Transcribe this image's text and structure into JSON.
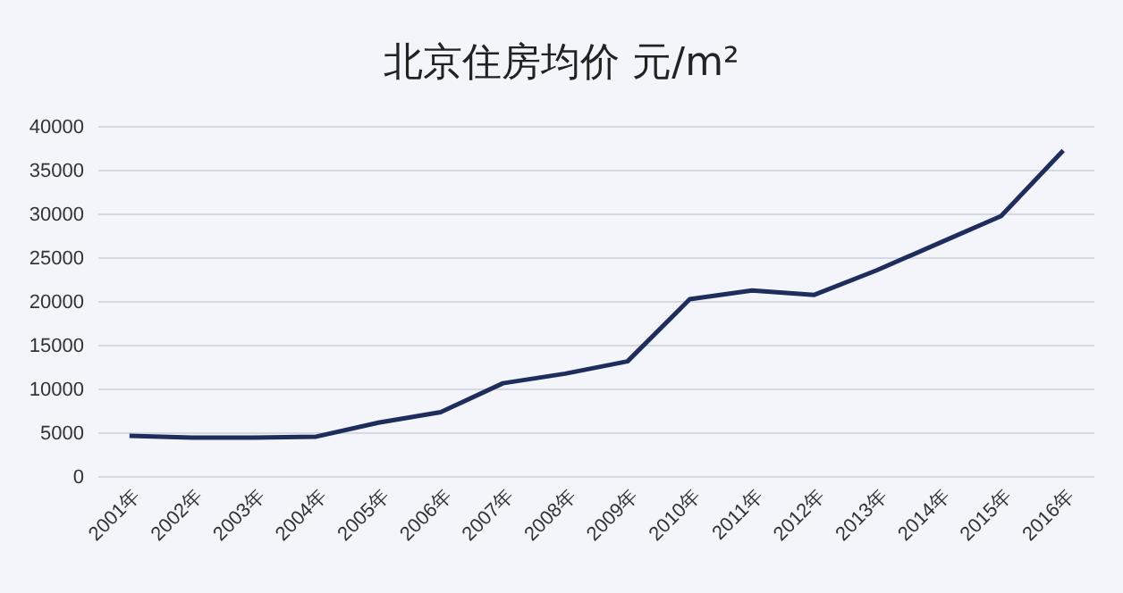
{
  "chart_data": {
    "type": "line",
    "title": "北京住房均价 元/m²",
    "categories": [
      "2001年",
      "2002年",
      "2003年",
      "2004年",
      "2005年",
      "2006年",
      "2007年",
      "2008年",
      "2009年",
      "2010年",
      "2011年",
      "2012年",
      "2013年",
      "2014年",
      "2015年",
      "2016年"
    ],
    "series": [
      {
        "color": "#1f2d5c",
        "values": [
          4700,
          4500,
          4500,
          4600,
          6200,
          7400,
          10700,
          11800,
          13200,
          20300,
          21300,
          20800,
          23600,
          26700,
          29800,
          37300
        ]
      }
    ],
    "ylim": [
      0,
      40000
    ],
    "yticks": [
      0,
      5000,
      10000,
      15000,
      20000,
      25000,
      30000,
      35000,
      40000
    ],
    "grid": "y",
    "marker": "none",
    "line_style": "solid"
  }
}
